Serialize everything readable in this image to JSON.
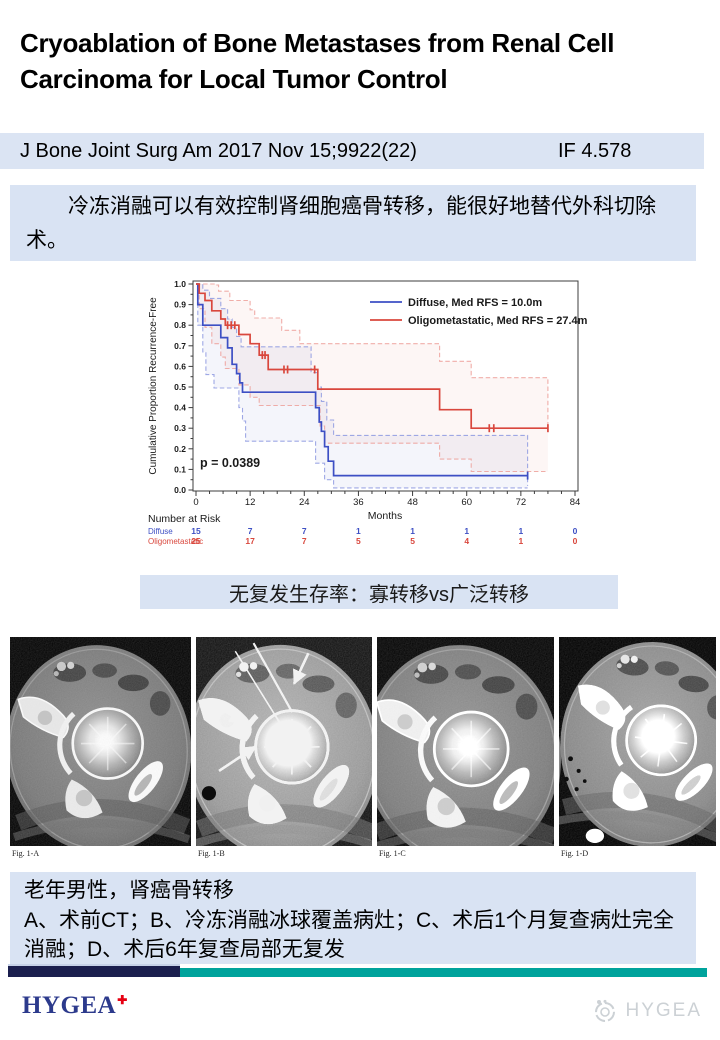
{
  "slide": {
    "title": "Cryoablation of Bone Metastases from Renal Cell Carcinoma for Local Tumor Control",
    "citation": "J Bone Joint Surg Am 2017 Nov 15;9922(22)",
    "impact_factor": "IF 4.578",
    "summary": "冷冻消融可以有效控制肾细胞癌骨转移，能很好地替代外科切除术。",
    "chart_caption": "无复发生存率：寡转移vs广泛转移",
    "figures": [
      {
        "label": "Fig. 1-A"
      },
      {
        "label": "Fig. 1-B"
      },
      {
        "label": "Fig. 1-C"
      },
      {
        "label": "Fig. 1-D"
      }
    ],
    "case_text_line1": "老年男性，肾癌骨转移",
    "case_text_line2": "A、术前CT；B、冷冻消融冰球覆盖病灶；C、术后1个月复查病灶完全消融；D、术后6年复查局部无复发",
    "footer": {
      "logo_text": "HYGEA",
      "logo_cross": "✚",
      "watermark_text": "HYGEA"
    },
    "colors": {
      "accent_box": "#d9e3f3",
      "journal_bar": "#dbe4f3",
      "navy_bar": "#1b1f4e",
      "teal_bar": "#00a39c",
      "logo_navy": "#2c3a8c",
      "logo_red": "#e60012",
      "diffuse_blue": "#3d4fc4",
      "oligo_red": "#d9473d"
    }
  },
  "chart_data": {
    "type": "line",
    "subtype": "kaplan-meier",
    "title": "",
    "xlabel": "Months",
    "ylabel": "Cumulative Proportion Recurrence-Free",
    "xlim": [
      0,
      84
    ],
    "ylim": [
      0.0,
      1.0
    ],
    "xticks": [
      0,
      12,
      24,
      36,
      48,
      60,
      72,
      84
    ],
    "yticks": [
      0.0,
      0.1,
      0.2,
      0.3,
      0.4,
      0.5,
      0.6,
      0.7,
      0.8,
      0.9,
      1.0
    ],
    "grid": false,
    "legend_position": "upper-right-inside",
    "pvalue": "p = 0.0389",
    "legend": [
      {
        "label": "Diffuse, Med RFS = 10.0m",
        "color": "#3d4fc4"
      },
      {
        "label": "Oligometastatic, Med RFS = 27.4m",
        "color": "#d9473d"
      }
    ],
    "series": [
      {
        "name": "Diffuse",
        "color": "#3d4fc4",
        "dash": false,
        "points": [
          [
            0,
            1.0
          ],
          [
            0.4,
            0.9
          ],
          [
            1.5,
            0.8
          ],
          [
            5.5,
            0.74
          ],
          [
            7,
            0.69
          ],
          [
            8,
            0.61
          ],
          [
            9,
            0.565
          ],
          [
            9.7,
            0.52
          ],
          [
            10.3,
            0.475
          ],
          [
            26.5,
            0.4
          ],
          [
            27.3,
            0.33
          ],
          [
            27.8,
            0.285
          ],
          [
            28.5,
            0.21
          ],
          [
            29.3,
            0.14
          ],
          [
            30.5,
            0.07
          ],
          [
            73.5,
            0.07
          ]
        ]
      },
      {
        "name": "Diffuse upper 95% CI",
        "color": "#8e9ae0",
        "dash": true,
        "points": [
          [
            0,
            1.0
          ],
          [
            1.5,
            0.97
          ],
          [
            3,
            0.93
          ],
          [
            5.5,
            0.88
          ],
          [
            7,
            0.83
          ],
          [
            8,
            0.79
          ],
          [
            9,
            0.745
          ],
          [
            10,
            0.695
          ],
          [
            24.5,
            0.695
          ],
          [
            25.5,
            0.57
          ],
          [
            27,
            0.5
          ],
          [
            27.8,
            0.43
          ],
          [
            29,
            0.34
          ],
          [
            30.5,
            0.265
          ],
          [
            73.5,
            0.02
          ]
        ]
      },
      {
        "name": "Diffuse lower 95% CI",
        "color": "#8e9ae0",
        "dash": true,
        "points": [
          [
            0,
            1.0
          ],
          [
            0.4,
            0.8
          ],
          [
            1.5,
            0.67
          ],
          [
            2.2,
            0.56
          ],
          [
            4,
            0.495
          ],
          [
            9.5,
            0.4
          ],
          [
            10.3,
            0.335
          ],
          [
            11,
            0.237
          ],
          [
            25.5,
            0.237
          ],
          [
            26.5,
            0.13
          ],
          [
            28.5,
            0.05
          ],
          [
            30.5,
            0.01
          ],
          [
            73.5,
            0.01
          ]
        ]
      },
      {
        "name": "Oligometastatic",
        "color": "#d9473d",
        "dash": false,
        "points": [
          [
            0,
            1.0
          ],
          [
            0.7,
            0.955
          ],
          [
            2,
            0.92
          ],
          [
            3.5,
            0.87
          ],
          [
            5.5,
            0.83
          ],
          [
            6.5,
            0.8
          ],
          [
            9.5,
            0.755
          ],
          [
            12,
            0.71
          ],
          [
            14,
            0.655
          ],
          [
            16,
            0.585
          ],
          [
            27,
            0.49
          ],
          [
            54,
            0.39
          ],
          [
            61,
            0.3
          ],
          [
            78,
            0.3
          ]
        ]
      },
      {
        "name": "Oligometastatic upper 95% CI",
        "color": "#eda09a",
        "dash": true,
        "points": [
          [
            0,
            1.0
          ],
          [
            4.5,
            0.995
          ],
          [
            5,
            0.965
          ],
          [
            7.5,
            0.92
          ],
          [
            12,
            0.875
          ],
          [
            13,
            0.835
          ],
          [
            19,
            0.775
          ],
          [
            23,
            0.71
          ],
          [
            54,
            0.625
          ],
          [
            61,
            0.545
          ],
          [
            78,
            0.3
          ]
        ]
      },
      {
        "name": "Oligometastatic lower 95% CI",
        "color": "#eda09a",
        "dash": true,
        "points": [
          [
            0,
            1.0
          ],
          [
            0.7,
            0.88
          ],
          [
            2,
            0.79
          ],
          [
            3.5,
            0.71
          ],
          [
            5.5,
            0.645
          ],
          [
            6.5,
            0.59
          ],
          [
            9.5,
            0.51
          ],
          [
            12,
            0.45
          ],
          [
            14,
            0.41
          ],
          [
            26.5,
            0.41
          ],
          [
            27.5,
            0.31
          ],
          [
            28.5,
            0.227
          ],
          [
            54,
            0.15
          ],
          [
            61,
            0.09
          ],
          [
            78,
            0.09
          ]
        ]
      }
    ],
    "bands": [
      {
        "upper": 1,
        "lower": 2,
        "fill": "rgba(110,125,200,0.08)"
      },
      {
        "upper": 4,
        "lower": 5,
        "fill": "rgba(230,130,120,0.07)"
      }
    ],
    "censors": [
      {
        "color": "#3d4fc4",
        "points": [
          [
            73.5,
            0.07
          ]
        ]
      },
      {
        "color": "#d9473d",
        "points": [
          [
            7,
            0.8
          ],
          [
            7.8,
            0.8
          ],
          [
            8.6,
            0.8
          ],
          [
            14.7,
            0.655
          ],
          [
            15.3,
            0.655
          ],
          [
            19.5,
            0.585
          ],
          [
            20.3,
            0.585
          ],
          [
            26.3,
            0.585
          ],
          [
            65,
            0.3
          ],
          [
            66,
            0.3
          ],
          [
            78,
            0.3
          ]
        ]
      }
    ],
    "number_at_risk": {
      "header": "Number at Risk",
      "rows": [
        {
          "label": "Diffuse",
          "color": "#3d4fc4",
          "values": [
            15,
            7,
            7,
            1,
            1,
            1,
            1,
            0
          ]
        },
        {
          "label": "Oligometastatic",
          "color": "#d9473d",
          "values": [
            25,
            17,
            7,
            5,
            5,
            4,
            1,
            0
          ]
        }
      ]
    }
  }
}
